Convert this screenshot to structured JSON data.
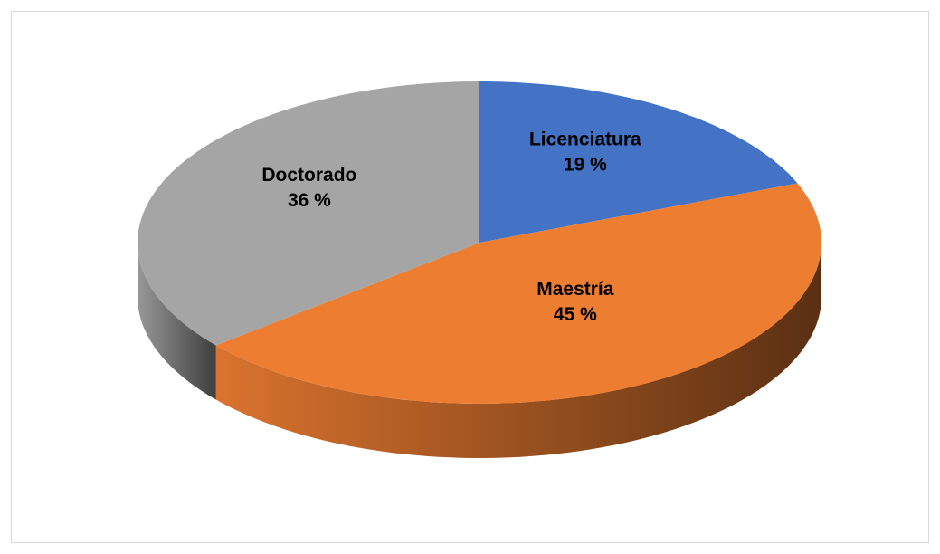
{
  "chart_data": {
    "type": "pie",
    "categories": [
      "Licenciatura",
      "Maestría",
      "Doctorado"
    ],
    "values": [
      19,
      45,
      36
    ],
    "value_labels": [
      "19 %",
      "45 %",
      "36 %"
    ],
    "colors": [
      "#4472c4",
      "#ed7d31",
      "#a5a5a5"
    ]
  }
}
